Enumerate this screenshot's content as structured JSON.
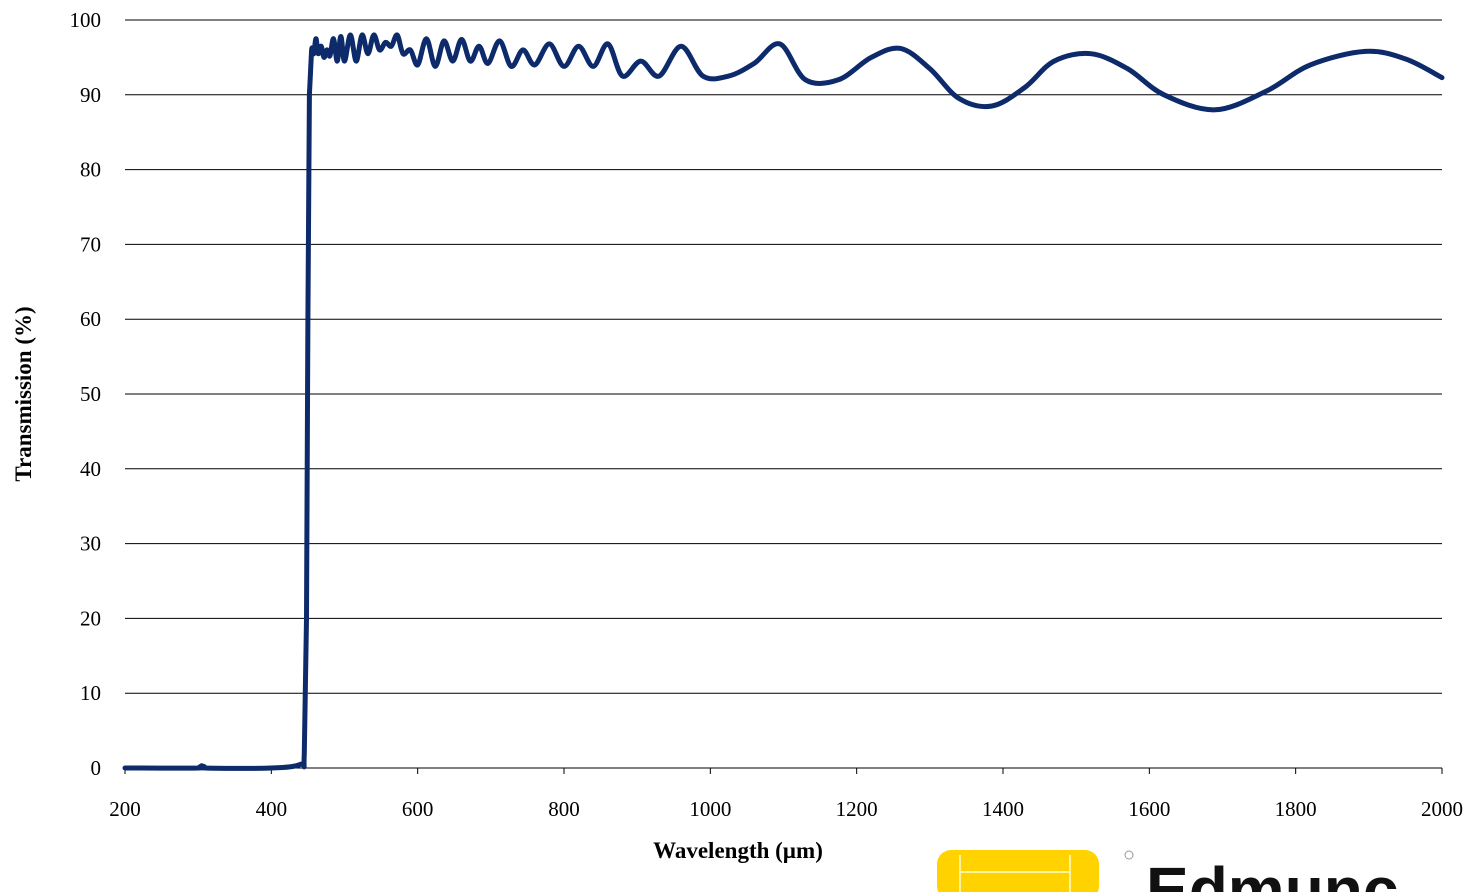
{
  "chart_data": {
    "type": "line",
    "title": "",
    "xlabel": "Wavelength (µm)",
    "ylabel": "Transmission (%)",
    "xlim": [
      200,
      2000
    ],
    "ylim": [
      0,
      100
    ],
    "x_ticks": [
      200,
      400,
      600,
      800,
      1000,
      1200,
      1400,
      1600,
      1800,
      2000
    ],
    "y_ticks": [
      0,
      10,
      20,
      30,
      40,
      50,
      60,
      70,
      80,
      90,
      100
    ],
    "grid": "horizontal",
    "legend": "none",
    "series": [
      {
        "color": "#0d2a6b",
        "x": [
          200,
          300,
          305,
          310,
          400,
          440,
          445,
          448,
          450,
          452,
          455,
          458,
          461,
          464,
          468,
          472,
          476,
          480,
          485,
          490,
          495,
          500,
          508,
          516,
          524,
          532,
          540,
          548,
          556,
          564,
          572,
          580,
          590,
          600,
          612,
          624,
          636,
          648,
          660,
          672,
          684,
          696,
          712,
          728,
          744,
          760,
          780,
          800,
          820,
          840,
          860,
          880,
          905,
          930,
          960,
          990,
          1025,
          1060,
          1095,
          1130,
          1175,
          1220,
          1260,
          1300,
          1340,
          1385,
          1430,
          1470,
          1520,
          1570,
          1620,
          1690,
          1760,
          1820,
          1895,
          1950,
          2000
        ],
        "y": [
          0,
          0,
          0.3,
          0,
          0,
          0.5,
          2,
          20,
          60,
          90,
          96,
          95.5,
          97.5,
          95.5,
          96.5,
          95,
          96,
          95.2,
          97.5,
          94.5,
          97.8,
          94.5,
          98,
          94.5,
          98,
          95.5,
          98,
          96,
          97,
          96.5,
          98,
          95.5,
          96,
          94,
          97.5,
          93.8,
          97.2,
          94.5,
          97.4,
          94.5,
          96.5,
          94.2,
          97.2,
          93.8,
          96,
          94,
          96.8,
          93.8,
          96.5,
          93.8,
          96.8,
          92.5,
          94.5,
          92.5,
          96.5,
          92.5,
          92.5,
          94.2,
          96.8,
          92,
          92,
          95,
          96.2,
          93.5,
          89.5,
          88.5,
          91,
          94.5,
          95.5,
          93.5,
          90,
          88,
          90.5,
          94,
          95.8,
          94.8,
          92.3
        ]
      }
    ]
  },
  "logo": {
    "brand_text": "Edmunc",
    "colors": {
      "yellow": "#ffd200",
      "text": "#111111"
    }
  }
}
